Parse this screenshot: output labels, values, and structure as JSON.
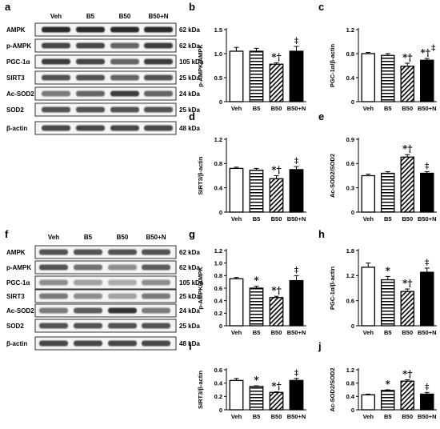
{
  "blot_panels": [
    {
      "letter": "a",
      "groups": [
        "Veh",
        "B5",
        "B50",
        "B50+N"
      ],
      "bands": [
        {
          "protein": "AMPK",
          "size": "62 kDa"
        },
        {
          "protein": "p-AMPK",
          "size": "62 kDa"
        },
        {
          "protein": "PGC-1α",
          "size": "105 kDa"
        },
        {
          "protein": "SIRT3",
          "size": "25 kDa"
        },
        {
          "protein": "Ac-SOD2",
          "size": "24 kDa"
        },
        {
          "protein": "SOD2",
          "size": "25 kDa"
        },
        {
          "protein": "β-actin",
          "size": "48 kDa"
        }
      ]
    },
    {
      "letter": "f",
      "groups": [
        "Veh",
        "B5",
        "B50",
        "B50+N"
      ],
      "bands": [
        {
          "protein": "AMPK",
          "size": "62 kDa"
        },
        {
          "protein": "p-AMPK",
          "size": "62 kDa"
        },
        {
          "protein": "PGC-1α",
          "size": "105 kDa"
        },
        {
          "protein": "SIRT3",
          "size": "25 kDa"
        },
        {
          "protein": "Ac-SOD2",
          "size": "24 kDa"
        },
        {
          "protein": "SOD2",
          "size": "25 kDa"
        },
        {
          "protein": "β-actin",
          "size": "48 kDa"
        }
      ]
    }
  ],
  "chart_data": [
    {
      "letter": "b",
      "type": "bar",
      "categories": [
        "Veh",
        "B5",
        "B50",
        "B50+N"
      ],
      "ylabel": "p-AMPK/AMPK",
      "ylim": [
        0,
        1.5
      ],
      "yticks": [
        "0",
        "0.5",
        "1.0",
        "1.5"
      ],
      "values": [
        1.05,
        1.05,
        0.78,
        1.05
      ],
      "errors": [
        0.08,
        0.06,
        0.03,
        0.1
      ],
      "annotations": [
        "",
        "",
        "*†",
        "‡"
      ]
    },
    {
      "letter": "c",
      "type": "bar",
      "categories": [
        "Veh",
        "B5",
        "B50",
        "B50+N"
      ],
      "ylabel": "PGC-1α/β-actin",
      "ylim": [
        0,
        1.2
      ],
      "yticks": [
        "0",
        "0.4",
        "0.8",
        "1.2"
      ],
      "values": [
        0.8,
        0.77,
        0.59,
        0.69
      ],
      "errors": [
        0.02,
        0.03,
        0.05,
        0.03
      ],
      "annotations": [
        "",
        "",
        "*†",
        "*†‡"
      ]
    },
    {
      "letter": "d",
      "type": "bar",
      "categories": [
        "Veh",
        "B5",
        "B50",
        "B50+N"
      ],
      "ylabel": "SIRT3/β-actin",
      "ylim": [
        0,
        1.2
      ],
      "yticks": [
        "0",
        "0.4",
        "0.8",
        "1.2"
      ],
      "values": [
        0.72,
        0.69,
        0.55,
        0.7
      ],
      "errors": [
        0.02,
        0.03,
        0.05,
        0.05
      ],
      "annotations": [
        "",
        "",
        "*†",
        "‡"
      ]
    },
    {
      "letter": "e",
      "type": "bar",
      "categories": [
        "Veh",
        "B5",
        "B50",
        "B50+N"
      ],
      "ylabel": "Ac-SOD2/SOD2",
      "ylim": [
        0,
        0.9
      ],
      "yticks": [
        "0",
        "0.3",
        "0.6",
        "0.9"
      ],
      "values": [
        0.45,
        0.48,
        0.68,
        0.48
      ],
      "errors": [
        0.02,
        0.02,
        0.03,
        0.02
      ],
      "annotations": [
        "",
        "",
        "*†",
        "‡"
      ]
    },
    {
      "letter": "g",
      "type": "bar",
      "categories": [
        "Veh",
        "B5",
        "B50",
        "B50+N"
      ],
      "ylabel": "p-AMPK/AMPK",
      "ylim": [
        0,
        1.2
      ],
      "yticks": [
        "0",
        "0.2",
        "0.4",
        "0.6",
        "0.8",
        "1.0",
        "1.2"
      ],
      "values": [
        0.75,
        0.6,
        0.45,
        0.72
      ],
      "errors": [
        0.02,
        0.03,
        0.02,
        0.08
      ],
      "annotations": [
        "",
        "*",
        "*†",
        "‡"
      ]
    },
    {
      "letter": "h",
      "type": "bar",
      "categories": [
        "Veh",
        "B5",
        "B50",
        "B50+N"
      ],
      "ylabel": "PGC-1α/β-actin",
      "ylim": [
        0,
        1.8
      ],
      "yticks": [
        "0",
        "0.6",
        "1.2",
        "1.8"
      ],
      "values": [
        1.4,
        1.1,
        0.82,
        1.28
      ],
      "errors": [
        0.1,
        0.08,
        0.06,
        0.1
      ],
      "annotations": [
        "",
        "*",
        "*†",
        "‡"
      ]
    },
    {
      "letter": "i",
      "type": "bar",
      "categories": [
        "Veh",
        "B5",
        "B50",
        "B50+N"
      ],
      "ylabel": "SIRT3/β-actin",
      "ylim": [
        0,
        0.6
      ],
      "yticks": [
        "0",
        "0.2",
        "0.4",
        "0.6"
      ],
      "values": [
        0.44,
        0.35,
        0.26,
        0.44
      ],
      "errors": [
        0.03,
        0.01,
        0.01,
        0.03
      ],
      "annotations": [
        "",
        "*",
        "*†",
        "‡"
      ]
    },
    {
      "letter": "j",
      "type": "bar",
      "categories": [
        "Veh",
        "B5",
        "B50",
        "B50+N"
      ],
      "ylabel": "Ac-SOD2/SOD2",
      "ylim": [
        0,
        1.2
      ],
      "yticks": [
        "0",
        "0.4",
        "0.8",
        "1.2"
      ],
      "values": [
        0.45,
        0.58,
        0.86,
        0.47
      ],
      "errors": [
        0.02,
        0.02,
        0.04,
        0.05
      ],
      "annotations": [
        "",
        "*",
        "*†",
        "‡"
      ]
    }
  ],
  "bar_fills": [
    "white",
    "horizontal-stripes",
    "diagonal-stripes",
    "black"
  ],
  "colors": {
    "ink": "#000000",
    "band": "#2a2a2a",
    "paper": "#ffffff"
  }
}
